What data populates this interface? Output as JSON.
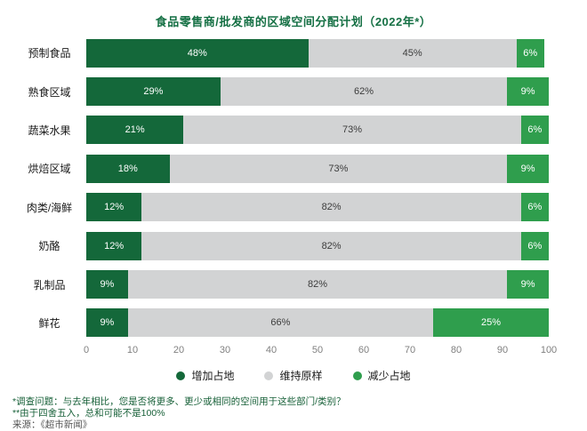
{
  "title": "食品零售商/批发商的区域空间分配计划（2022年*）",
  "chart_data": {
    "type": "bar",
    "orientation": "horizontal-stacked",
    "title": "食品零售商/批发商的区域空间分配计划（2022年*）",
    "categories": [
      "预制食品",
      "熟食区域",
      "蔬菜水果",
      "烘焙区域",
      "肉类/海鲜",
      "奶酪",
      "乳制品",
      "鲜花"
    ],
    "series": [
      {
        "name": "增加占地",
        "color": "#14683a",
        "text_color": "#ffffff",
        "values": [
          48,
          29,
          21,
          18,
          12,
          12,
          9,
          9
        ]
      },
      {
        "name": "维持原样",
        "color": "#d2d3d4",
        "text_color": "#3c3c3c",
        "values": [
          45,
          62,
          73,
          73,
          82,
          82,
          82,
          66
        ]
      },
      {
        "name": "减少占地",
        "color": "#2f9e4d",
        "text_color": "#ffffff",
        "values": [
          6,
          9,
          6,
          9,
          6,
          6,
          9,
          25
        ]
      }
    ],
    "xlim": [
      0,
      100
    ],
    "x_ticks": [
      0,
      10,
      20,
      30,
      40,
      50,
      60,
      70,
      80,
      90,
      100
    ],
    "grid": false,
    "legend_position": "bottom",
    "value_suffix": "%"
  },
  "footnotes": [
    "*调查问题：与去年相比，您是否将更多、更少或相同的空间用于这些部门/类别？",
    "**由于四舍五入，总和可能不是100%",
    "来源：《超市新闻》"
  ]
}
